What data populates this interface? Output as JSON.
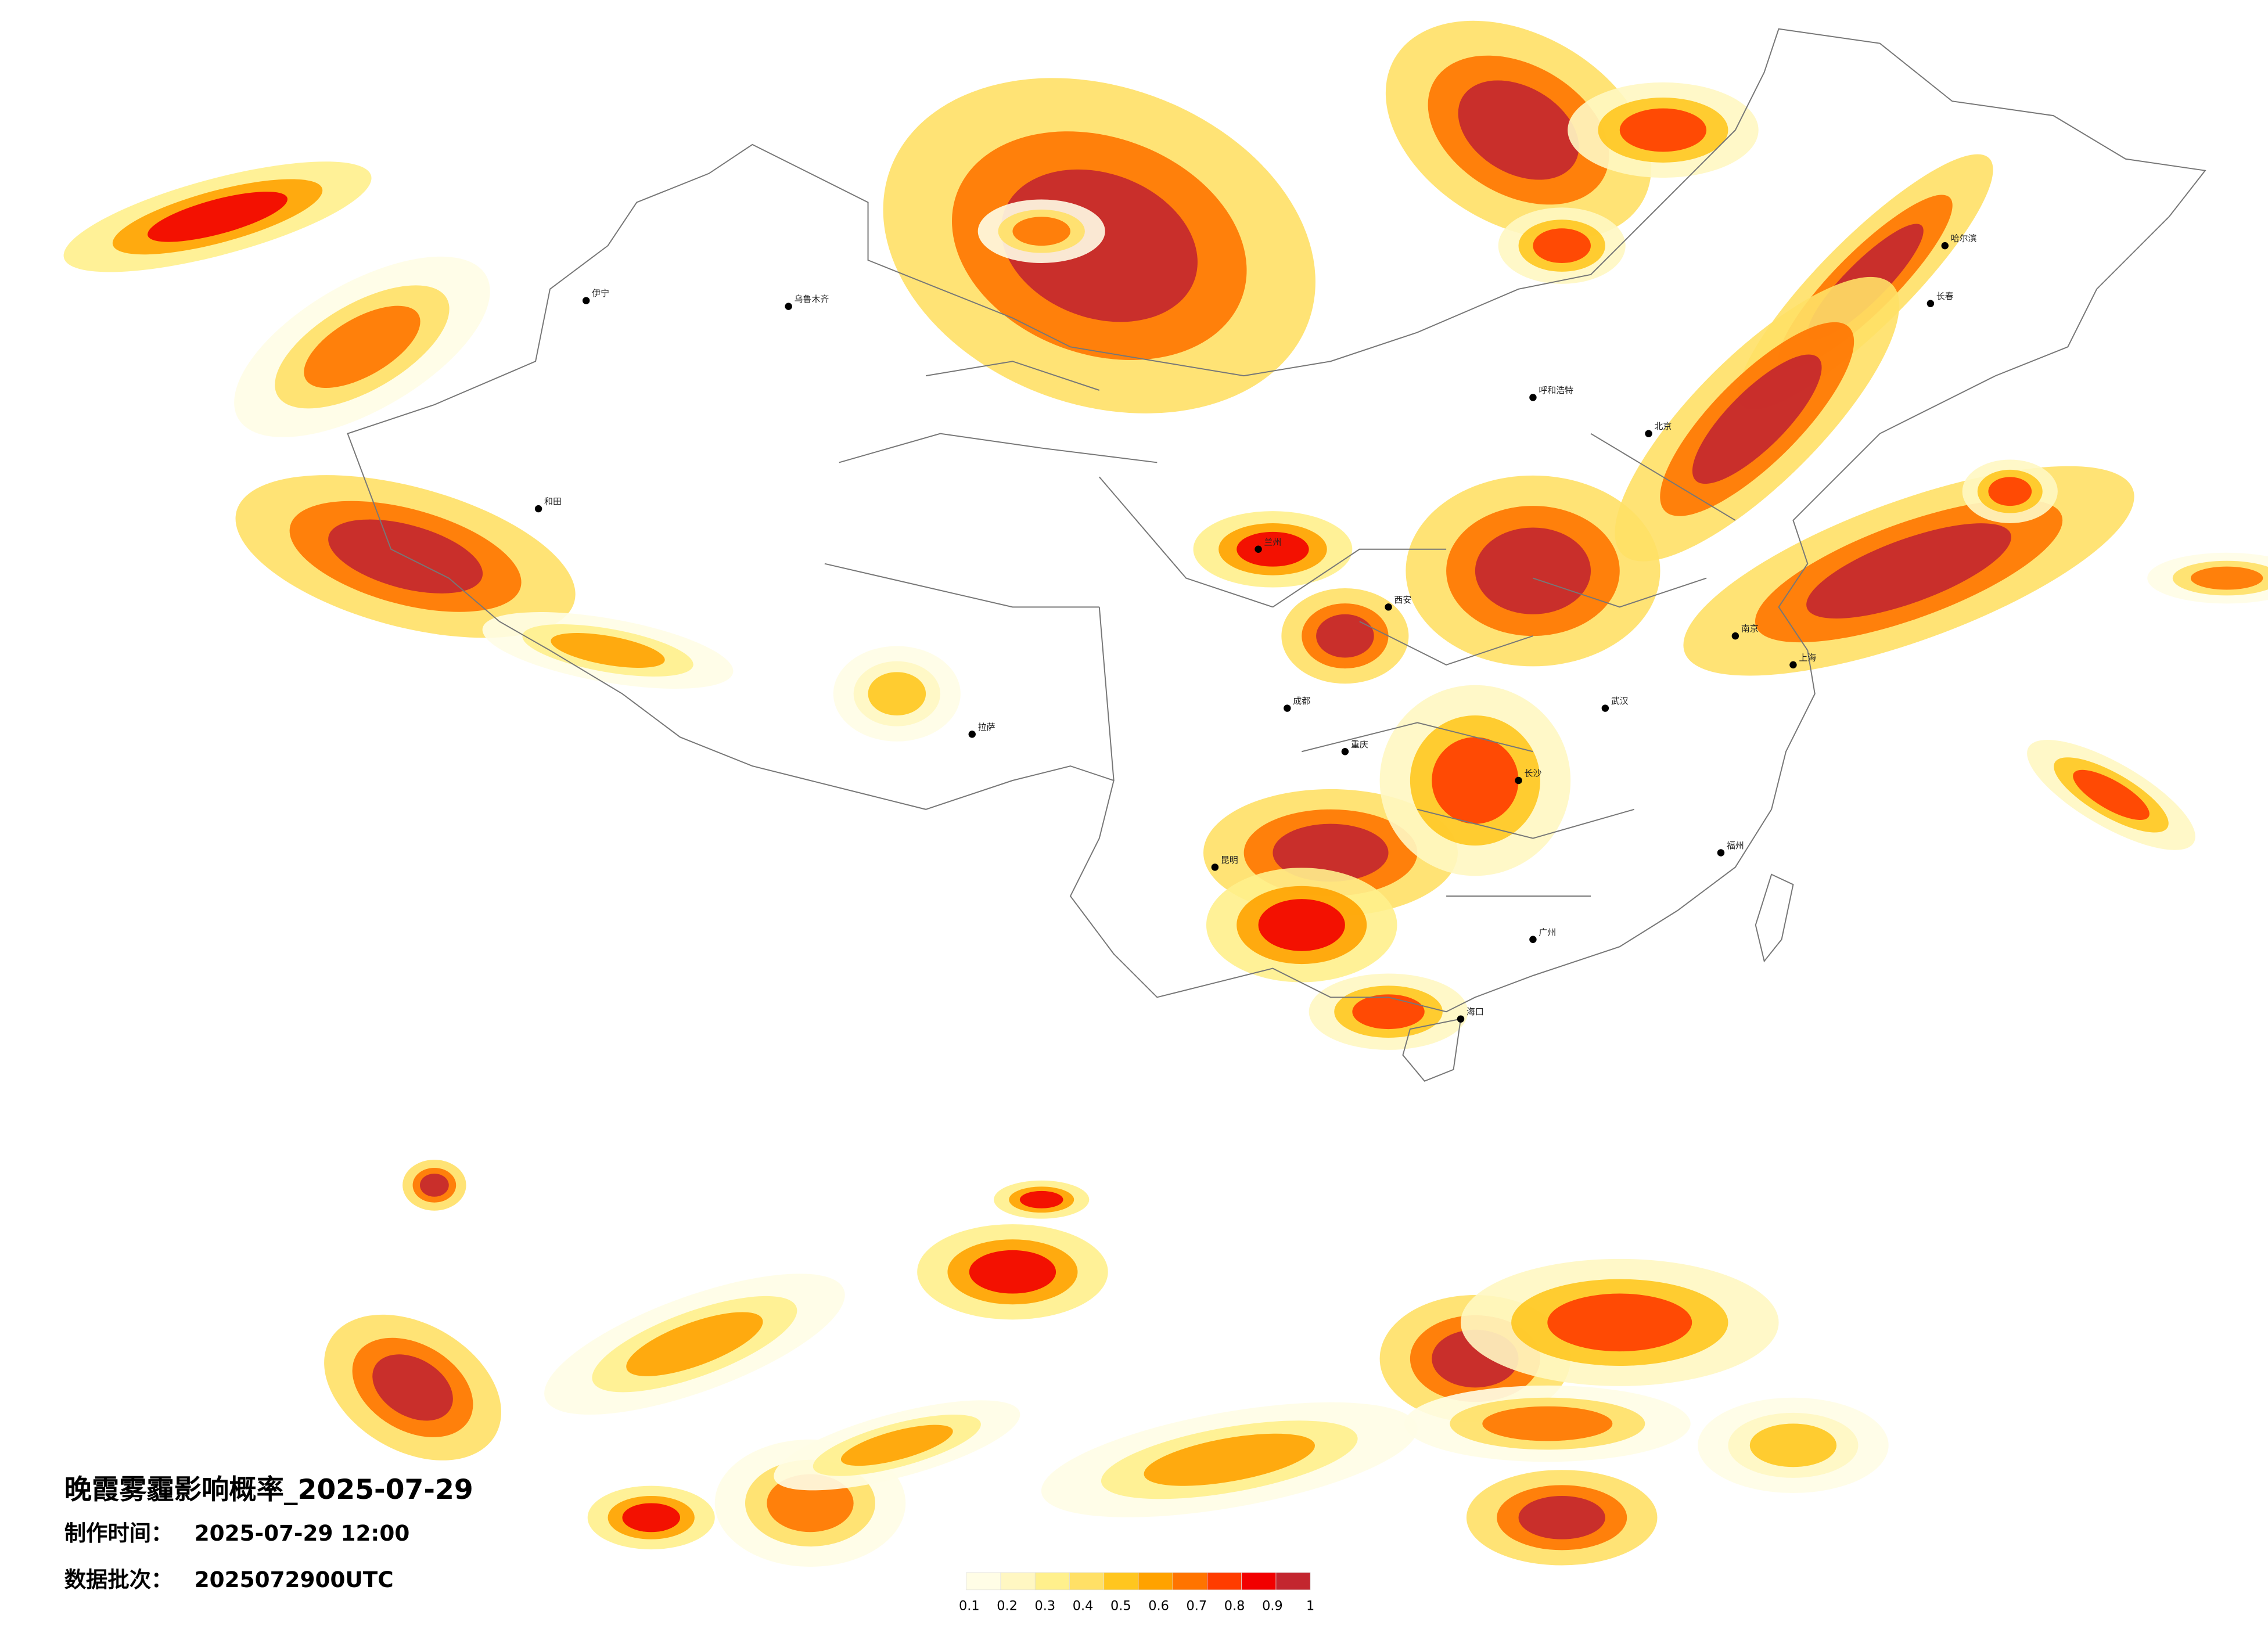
{
  "title": "晚霞雾霾影响概率_2025-07-29",
  "made_label": "制作时间：",
  "made_time": "2025-07-29 12:00",
  "batch_label": "数据批次：",
  "batch": "2025072900UTC",
  "legend": {
    "colors": [
      "#fffde6",
      "#fff7c2",
      "#fff08c",
      "#ffe066",
      "#ffc61f",
      "#ffa200",
      "#ff7400",
      "#ff3c00",
      "#f20000",
      "#c3262f"
    ],
    "labels": [
      0.1,
      0.2,
      0.3,
      0.4,
      0.5,
      0.6,
      0.7,
      0.8,
      0.9,
      1
    ]
  },
  "cities": [
    "北京",
    "上海",
    "广州",
    "乌鲁木齐",
    "拉萨",
    "成都",
    "武汉",
    "西安",
    "哈尔滨",
    "昆明",
    "兰州",
    "长沙",
    "南京",
    "重庆",
    "海口",
    "呼和浩特",
    "和田",
    "伊宁",
    "长春",
    "福州"
  ]
}
